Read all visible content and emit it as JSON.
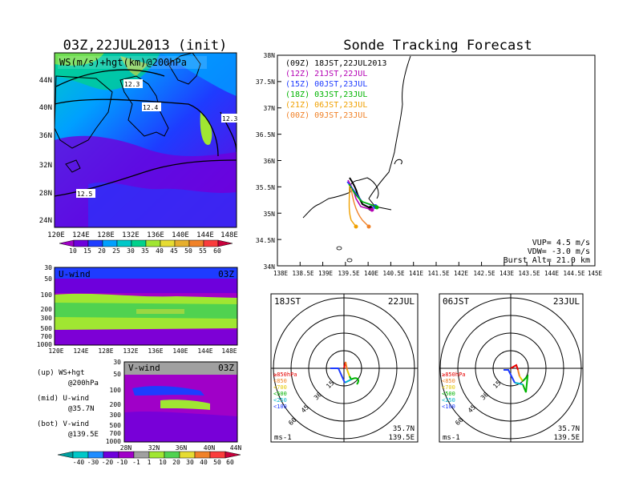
{
  "header": {
    "left_title": "03Z,22JUL2013 (init)",
    "right_title": "Sonde Tracking Forecast"
  },
  "top_map": {
    "label": "WS(m/s)+hgt(km)@200hPa",
    "lat_ticks": [
      "44N",
      "40N",
      "36N",
      "32N",
      "28N",
      "24N"
    ],
    "lon_ticks": [
      "120E",
      "124E",
      "128E",
      "132E",
      "136E",
      "140E",
      "144E",
      "148E"
    ],
    "contour_labels": [
      "12.3",
      "12.4",
      "12.3",
      "12.5"
    ],
    "colorbar_ticks": [
      "10",
      "15",
      "20",
      "25",
      "30",
      "35",
      "40",
      "45",
      "50",
      "55",
      "60"
    ],
    "colorbar_colors": [
      "#a000c8",
      "#6e00dc",
      "#1e3cff",
      "#00a0ff",
      "#00c8c8",
      "#00d28c",
      "#a0e632",
      "#e6dc32",
      "#e6af2d",
      "#f08228",
      "#fa3c3c",
      "#c8003c"
    ]
  },
  "u_panel": {
    "label": "U-wind",
    "time": "03Z",
    "y_ticks": [
      "30",
      "50",
      "100",
      "200",
      "300",
      "500",
      "700",
      "1000"
    ],
    "x_ticks": [
      "120E",
      "124E",
      "128E",
      "132E",
      "136E",
      "140E",
      "144E",
      "148E"
    ]
  },
  "v_panel": {
    "label": "V-wind",
    "time": "03Z",
    "y_ticks": [
      "30",
      "50",
      "100",
      "200",
      "300",
      "500",
      "700",
      "1000"
    ],
    "x_ticks": [
      "28N",
      "32N",
      "36N",
      "40N",
      "44N"
    ]
  },
  "notes": {
    "up_line1": "(up) WS+hgt",
    "up_line2": "@200hPa",
    "mid_line1": "(mid) U-wind",
    "mid_line2": "@35.7N",
    "bot_line1": "(bot) V-wind",
    "bot_line2": "@139.5E"
  },
  "bottom_colorbar": {
    "ticks": [
      "-40",
      "-30",
      "-20",
      "-10",
      "-1",
      "1",
      "10",
      "20",
      "30",
      "40",
      "50",
      "60"
    ],
    "colors": [
      "#00a0a0",
      "#00c8c8",
      "#1e8cff",
      "#6e00dc",
      "#a000c8",
      "#a0a0a0",
      "#a0e632",
      "#50d250",
      "#e6dc32",
      "#f08228",
      "#fa3c3c",
      "#c8003c"
    ]
  },
  "track_map": {
    "lat_ticks": [
      "38N",
      "37.5N",
      "37N",
      "36.5N",
      "36N",
      "35.5N",
      "35N",
      "34.5N",
      "34N"
    ],
    "lon_ticks": [
      "138E",
      "138.5E",
      "139E",
      "139.5E",
      "140E",
      "140.5E",
      "141E",
      "141.5E",
      "142E",
      "142.5E",
      "143E",
      "143.5E",
      "144E",
      "144.5E",
      "145E"
    ],
    "legend": [
      {
        "text": "(09Z) 18JST,22JUL2013",
        "color": "#000000"
      },
      {
        "text": "(12Z) 21JST,22JUL",
        "color": "#b400b4"
      },
      {
        "text": "(15Z) 00JST,23JUL",
        "color": "#1e3cff"
      },
      {
        "text": "(18Z) 03JST,23JUL",
        "color": "#00b400"
      },
      {
        "text": "(21Z) 06JST,23JUL",
        "color": "#f0a000"
      },
      {
        "text": "(00Z) 09JST,23JUL",
        "color": "#f08228"
      }
    ],
    "params": [
      "VUP= 4.5 m/s",
      "VDW= -3.0 m/s",
      "Burst Alt= 21.0 km"
    ]
  },
  "polar_left": {
    "time": "18JST",
    "date": "22JUL",
    "ring_labels": [
      "15",
      "30",
      "45",
      "60"
    ],
    "levels": [
      {
        "text": "≥850hPa",
        "color": "#e60000"
      },
      {
        "text": "<850",
        "color": "#f08228"
      },
      {
        "text": "<700",
        "color": "#e6c800"
      },
      {
        "text": "<500",
        "color": "#00b400"
      },
      {
        "text": "<250",
        "color": "#00b4c8"
      },
      {
        "text": "<100",
        "color": "#1e3cff"
      }
    ],
    "unit": "ms-1",
    "lat": "35.7N",
    "lon": "139.5E"
  },
  "polar_right": {
    "time": "06JST",
    "date": "23JUL",
    "ring_labels": [
      "15",
      "30",
      "45",
      "60"
    ],
    "levels": [
      {
        "text": "≥850hPa",
        "color": "#e60000"
      },
      {
        "text": "<850",
        "color": "#f08228"
      },
      {
        "text": "<700",
        "color": "#e6c800"
      },
      {
        "text": "<500",
        "color": "#00b400"
      },
      {
        "text": "<250",
        "color": "#00b4c8"
      },
      {
        "text": "<100",
        "color": "#1e3cff"
      }
    ],
    "unit": "ms-1",
    "lat": "35.7N",
    "lon": "139.5E"
  }
}
